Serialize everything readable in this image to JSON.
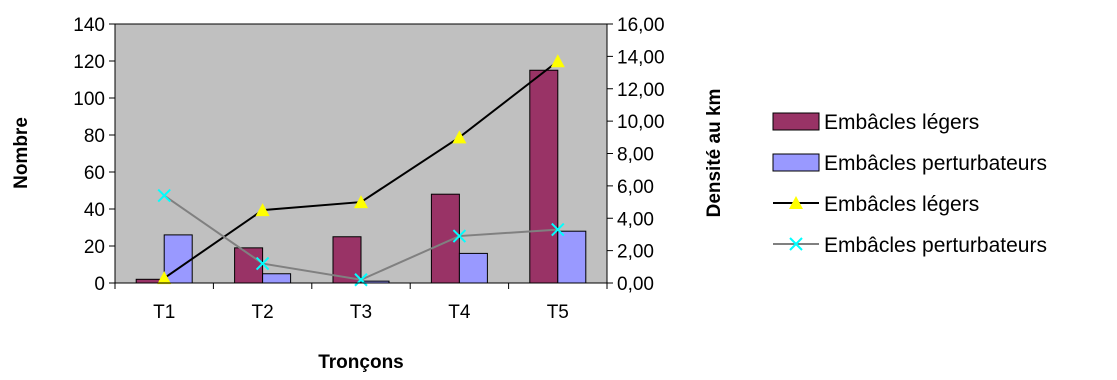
{
  "chart_data": {
    "type": "bar",
    "categories": [
      "T1",
      "T2",
      "T3",
      "T4",
      "T5"
    ],
    "bar_series": [
      {
        "name": "Embâcles légers",
        "axis": "left",
        "color": "#993366",
        "values": [
          2,
          19,
          25,
          48,
          115
        ]
      },
      {
        "name": "Embâcles perturbateurs",
        "axis": "left",
        "color": "#9999FF",
        "values": [
          26,
          5,
          1,
          16,
          28
        ]
      }
    ],
    "line_series": [
      {
        "name": "Embâcles légers",
        "axis": "right",
        "line_color": "#000000",
        "marker": "triangle",
        "marker_color": "#FFFF00",
        "values": [
          0.3,
          4.5,
          5.0,
          9.0,
          13.7
        ]
      },
      {
        "name": "Embâcles perturbateurs",
        "axis": "right",
        "line_color": "#808080",
        "marker": "x",
        "marker_color": "#00FFFF",
        "values": [
          5.4,
          1.2,
          0.2,
          2.9,
          3.3
        ]
      }
    ],
    "xlabel": "Tronçons",
    "ylabel": "Nombre",
    "y2label": "Densité au km",
    "ylim": [
      0,
      140
    ],
    "y_ticks": [
      "0",
      "20",
      "40",
      "60",
      "80",
      "100",
      "120",
      "140"
    ],
    "y2lim": [
      0,
      16
    ],
    "y2_ticks": [
      "0,00",
      "2,00",
      "4,00",
      "6,00",
      "8,00",
      "10,00",
      "12,00",
      "14,00",
      "16,00"
    ],
    "plot_background": "#C0C0C0",
    "grid": false,
    "legend_position": "right"
  }
}
